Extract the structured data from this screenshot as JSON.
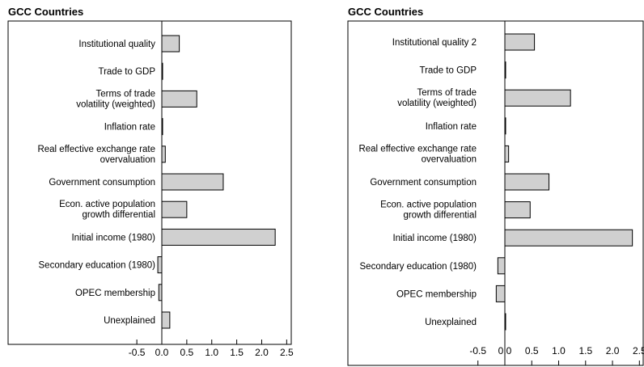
{
  "chart_data": [
    {
      "type": "bar",
      "orientation": "horizontal",
      "title": "GCC Countries",
      "xlabel": "",
      "ylabel": "",
      "xlim": [
        -0.5,
        2.5
      ],
      "x_ticks": [
        "-0.5",
        "0.0",
        "0.5",
        "1.0",
        "1.5",
        "2.0",
        "2.5"
      ],
      "grid": false,
      "categories": [
        [
          "Institutional quality"
        ],
        [
          "Trade to GDP"
        ],
        [
          "Terms of trade",
          "volatility (weighted)"
        ],
        [
          "Inflation rate"
        ],
        [
          "Real effective exchange rate",
          "overvaluation"
        ],
        [
          "Government consumption"
        ],
        [
          "Econ. active population",
          "growth differential"
        ],
        [
          "Initial income (1980)"
        ],
        [
          "Secondary education (1980)"
        ],
        [
          "OPEC membership"
        ],
        [
          "Unexplained"
        ]
      ],
      "values": [
        0.35,
        0.01,
        0.7,
        0.005,
        0.07,
        1.23,
        0.5,
        2.27,
        -0.08,
        -0.06,
        0.16
      ],
      "bar_color": "#d0d0d0"
    },
    {
      "type": "bar",
      "orientation": "horizontal",
      "title": "GCC Countries",
      "xlabel": "",
      "ylabel": "",
      "xlim": [
        -0.5,
        2.5
      ],
      "x_ticks": [
        "-0.5",
        "0.0",
        "0.5",
        "1.0",
        "1.5",
        "2.0",
        "2.5"
      ],
      "grid": false,
      "categories": [
        [
          "Institutional quality 2"
        ],
        [
          "Trade to GDP"
        ],
        [
          "Terms of trade",
          "volatility (weighted)"
        ],
        [
          "Inflation rate"
        ],
        [
          "Real effective exchange rate",
          "overvaluation"
        ],
        [
          "Government consumption"
        ],
        [
          "Econ. active population",
          "growth differential"
        ],
        [
          "Initial income (1980)"
        ],
        [
          "Secondary education (1980)"
        ],
        [
          "OPEC membership"
        ],
        [
          "Unexplained"
        ]
      ],
      "values": [
        0.55,
        0.01,
        1.22,
        0.0,
        0.07,
        0.82,
        0.47,
        2.37,
        -0.13,
        -0.16,
        0.01
      ],
      "bar_color": "#d0d0d0"
    }
  ]
}
